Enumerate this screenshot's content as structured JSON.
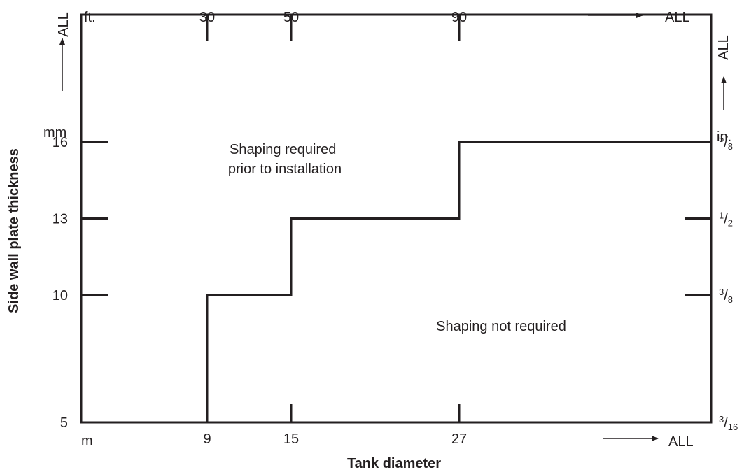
{
  "chart_data": {
    "type": "line",
    "title": "",
    "xlabel": "Tank diameter",
    "ylabel": "Side wall plate thickness",
    "x_units": {
      "metric": "m",
      "imperial": "ft."
    },
    "y_units": {
      "metric": "mm",
      "imperial": "in."
    },
    "x_ticks_m": [
      "9",
      "15",
      "27"
    ],
    "x_ticks_ft": [
      "30",
      "50",
      "90"
    ],
    "x_end_label": "ALL",
    "y_ticks_mm": [
      "5",
      "10",
      "13",
      "16"
    ],
    "y_ticks_in": [
      {
        "num": "3",
        "den": "16"
      },
      {
        "num": "3",
        "den": "8"
      },
      {
        "num": "1",
        "den": "2"
      },
      {
        "num": "5",
        "den": "8"
      }
    ],
    "y_end_label": "ALL",
    "series": [
      {
        "points": [
          {
            "x": 9,
            "y": 5
          },
          {
            "x": 9,
            "y": 10
          },
          {
            "x": 15,
            "y": 10
          },
          {
            "x": 15,
            "y": 13
          },
          {
            "x": 27,
            "y": 13
          },
          {
            "x": 27,
            "y": 16
          },
          {
            "x": "ALL",
            "y": 16
          }
        ]
      }
    ],
    "regions": [
      {
        "lines": [
          "Shaping required",
          "prior to installation"
        ]
      },
      {
        "lines": [
          "Shaping not required"
        ]
      }
    ]
  }
}
